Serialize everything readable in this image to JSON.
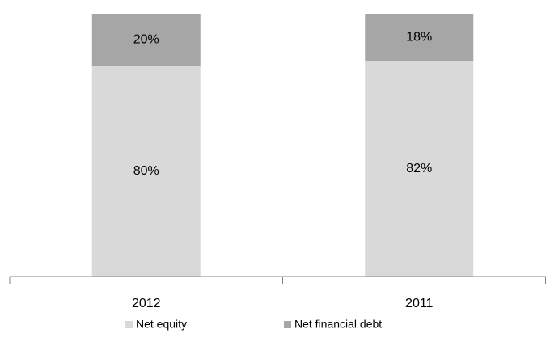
{
  "chart_data": {
    "type": "stacked_bar",
    "categories": [
      "2012",
      "2011"
    ],
    "series": [
      {
        "name": "Net equity",
        "color": "#d9d9d9",
        "values": [
          80,
          82
        ],
        "value_labels": [
          "80%",
          "82%"
        ]
      },
      {
        "name": "Net financial debt",
        "color": "#a6a6a6",
        "values": [
          20,
          18
        ],
        "value_labels": [
          "20%",
          "18%"
        ]
      }
    ],
    "legend": "bottom"
  }
}
